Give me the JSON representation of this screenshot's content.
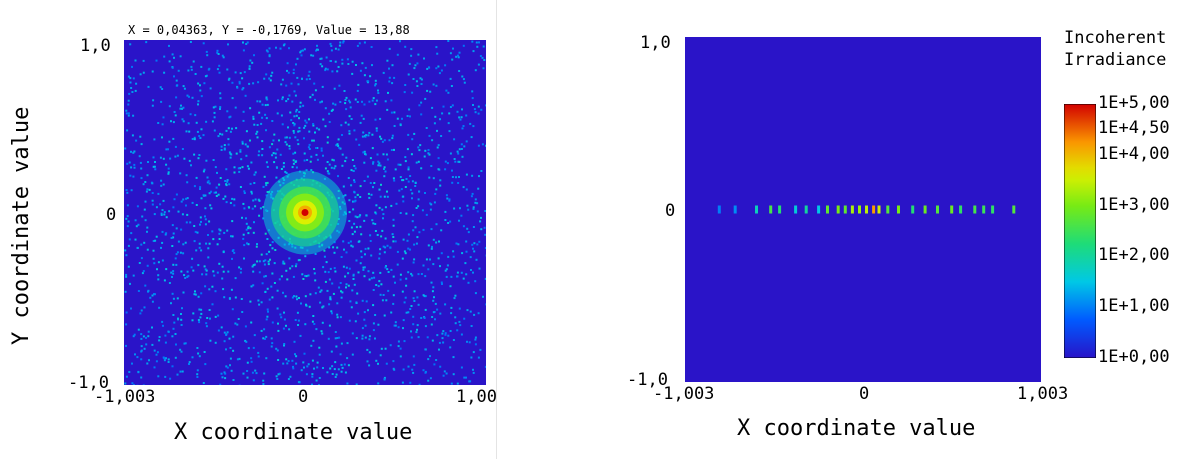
{
  "left_panel": {
    "readout": "X = 0,04363, Y = -0,1769, Value = 13,88",
    "y_tick_top": "1,0",
    "y_tick_mid": "0",
    "y_tick_bottom": "-1,0",
    "x_tick_left": "-1,003",
    "x_tick_mid": "0",
    "x_tick_right": "1,00",
    "xlabel": "X coordinate value",
    "ylabel": "Y coordinate value"
  },
  "right_panel": {
    "y_tick_top": "1,0",
    "y_tick_mid": "0",
    "y_tick_bottom": "-1,0",
    "x_tick_left": "-1,003",
    "x_tick_mid": "0",
    "x_tick_right": "1,003",
    "xlabel": "X coordinate value",
    "colorbar_title_line1": "Incoherent",
    "colorbar_title_line2": "Irradiance",
    "colorbar_ticks": [
      "1E+5,00",
      "1E+4,50",
      "1E+4,00",
      "1E+3,00",
      "1E+2,00",
      "1E+1,00",
      "1E+0,00"
    ]
  },
  "colors": {
    "background_blue": "#2a14c8",
    "peak_red": "#d40000",
    "mid_green": "#30e040",
    "halo_yellow": "#d8f000"
  },
  "chart_data": [
    {
      "type": "heatmap",
      "title": "",
      "xlabel": "X coordinate value",
      "ylabel": "Y coordinate value",
      "xlim": [
        -1.003,
        1.003
      ],
      "ylim": [
        -1.0,
        1.0
      ],
      "x_ticks": [
        "-1,003",
        "0",
        "1,00"
      ],
      "y_ticks": [
        "-1,0",
        "0",
        "1,0"
      ],
      "peak": {
        "x": 0,
        "y": 0
      },
      "cursor_readout": {
        "x": 0.04363,
        "y": -0.1769,
        "value": 13.88
      }
    },
    {
      "type": "heatmap",
      "title": "",
      "xlabel": "X coordinate value",
      "ylabel": "",
      "xlim": [
        -1.003,
        1.003
      ],
      "ylim": [
        -1.0,
        1.0
      ],
      "x_ticks": [
        "-1,003",
        "0",
        "1,003"
      ],
      "y_ticks": [
        "-1,0",
        "0",
        "1,0"
      ],
      "colorbar": {
        "label": "Incoherent Irradiance",
        "scale": "log",
        "min": 1,
        "max": 100000
      },
      "line_profile": {
        "y": 0,
        "points": [
          {
            "x": -0.81,
            "level": 1.0
          },
          {
            "x": -0.72,
            "level": 1.1
          },
          {
            "x": -0.6,
            "level": 1.8
          },
          {
            "x": -0.52,
            "level": 2.6
          },
          {
            "x": -0.47,
            "level": 2.3
          },
          {
            "x": -0.38,
            "level": 1.6
          },
          {
            "x": -0.32,
            "level": 2.0
          },
          {
            "x": -0.25,
            "level": 1.5
          },
          {
            "x": -0.2,
            "level": 2.8
          },
          {
            "x": -0.14,
            "level": 3.0
          },
          {
            "x": -0.1,
            "level": 2.8
          },
          {
            "x": -0.06,
            "level": 3.3
          },
          {
            "x": -0.02,
            "level": 3.2
          },
          {
            "x": 0.02,
            "level": 3.4
          },
          {
            "x": 0.06,
            "level": 4.2
          },
          {
            "x": 0.09,
            "level": 3.5
          },
          {
            "x": 0.14,
            "level": 2.7
          },
          {
            "x": 0.2,
            "level": 3.0
          },
          {
            "x": 0.28,
            "level": 2.3
          },
          {
            "x": 0.35,
            "level": 2.9
          },
          {
            "x": 0.42,
            "level": 2.7
          },
          {
            "x": 0.5,
            "level": 2.9
          },
          {
            "x": 0.55,
            "level": 2.4
          },
          {
            "x": 0.63,
            "level": 2.6
          },
          {
            "x": 0.68,
            "level": 2.5
          },
          {
            "x": 0.73,
            "level": 2.4
          },
          {
            "x": 0.85,
            "level": 2.7
          }
        ]
      }
    }
  ]
}
